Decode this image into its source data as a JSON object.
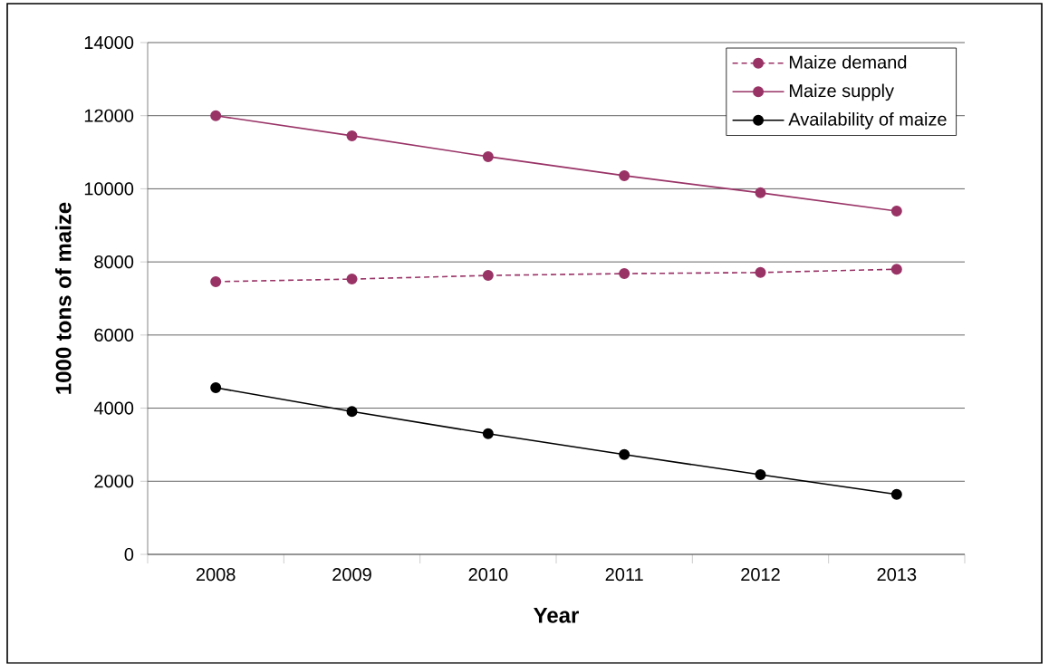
{
  "chart_data": {
    "type": "line",
    "xlabel": "Year",
    "ylabel": "1000 tons of maize",
    "categories": [
      "2008",
      "2009",
      "2010",
      "2011",
      "2012",
      "2013"
    ],
    "series": [
      {
        "name": "Maize demand",
        "color": "#993366",
        "line_style": "dotted",
        "values": [
          7460,
          7530,
          7630,
          7680,
          7710,
          7800
        ]
      },
      {
        "name": "Maize supply",
        "color": "#993366",
        "line_style": "solid",
        "values": [
          12000,
          11450,
          10880,
          10360,
          9890,
          9390
        ]
      },
      {
        "name": "Availability of maize",
        "color": "#000000",
        "line_style": "solid",
        "values": [
          4560,
          3910,
          3300,
          2730,
          2180,
          1640
        ]
      }
    ],
    "ylim": [
      0,
      14000
    ],
    "yticks": [
      0,
      2000,
      4000,
      6000,
      8000,
      10000,
      12000,
      14000
    ],
    "grid": "y",
    "legend": "top right",
    "marker": "circle"
  }
}
